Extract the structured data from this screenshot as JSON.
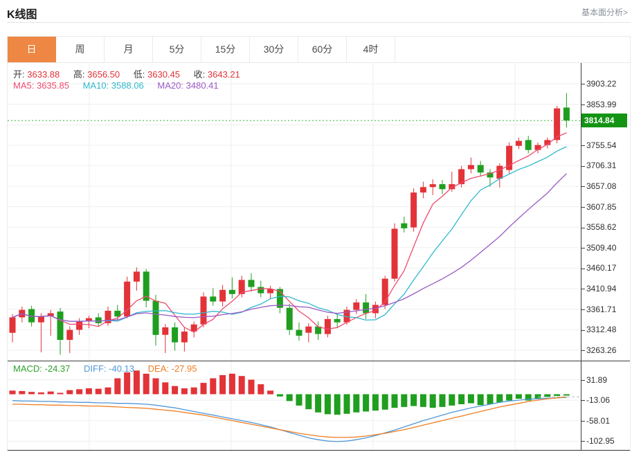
{
  "header": {
    "title": "K线图",
    "link": "基本面分析>"
  },
  "tabs": {
    "items": [
      "日",
      "周",
      "月",
      "5分",
      "15分",
      "30分",
      "60分",
      "4时"
    ],
    "active_index": 0
  },
  "legend": {
    "ohlc": [
      {
        "label": "开:",
        "value": "3633.88"
      },
      {
        "label": "高:",
        "value": "3656.50"
      },
      {
        "label": "低:",
        "value": "3630.45"
      },
      {
        "label": "收:",
        "value": "3643.21"
      }
    ],
    "ma": [
      {
        "label": "MA5:",
        "value": "3635.85"
      },
      {
        "label": "MA10:",
        "value": "3588.06"
      },
      {
        "label": "MA20:",
        "value": "3480.41"
      }
    ],
    "macd": [
      {
        "label": "MACD:",
        "value": "-24.37"
      },
      {
        "label": "DIFF:",
        "value": "-40.13"
      },
      {
        "label": "DEA:",
        "value": "-27.95"
      }
    ]
  },
  "price_tag": {
    "value": "3814.84"
  },
  "colors": {
    "up": "#e23338",
    "down": "#1f9e1f",
    "ma5": "#ef4a6e",
    "ma10": "#2fb8cd",
    "ma20": "#9b59c6",
    "diff": "#4e97d9",
    "dea": "#ef7d21",
    "macd_text": "#2ca32c",
    "grid": "#efefef",
    "vgrid": "#ececec",
    "axis_line": "#3c3c3c",
    "tick_text": "#2e2e2e",
    "price_line": "#2db82d",
    "tag_bg": "#149414",
    "tag_text": "#ffffff",
    "tab_active": "#ee8743",
    "dashed_tail": "#a5c3de",
    "label_text": "#3c3c3c",
    "link_text": "#8a9099"
  },
  "chart_data": [
    {
      "type": "candlestick",
      "title": "K线图",
      "panel": "main",
      "ylim": [
        3238.1,
        3953.1
      ],
      "yticks": [
        "3903.22",
        "3853.99",
        "3804.76",
        "3755.54",
        "3706.31",
        "3657.08",
        "3607.85",
        "3558.62",
        "3509.40",
        "3460.17",
        "3410.94",
        "3361.71",
        "3312.48",
        "3263.26"
      ],
      "current_price": 3814.84,
      "ma_periods": [
        5,
        10,
        20
      ],
      "legend_note": "red=up green=down, ohlc order [open,high,low,close]",
      "candles": [
        [
          3305,
          3350,
          3282,
          3342
        ],
        [
          3342,
          3368,
          3330,
          3360
        ],
        [
          3362,
          3370,
          3320,
          3330
        ],
        [
          3330,
          3352,
          3258,
          3345
        ],
        [
          3345,
          3360,
          3298,
          3352
        ],
        [
          3356,
          3365,
          3252,
          3288
        ],
        [
          3288,
          3320,
          3256,
          3312
        ],
        [
          3312,
          3340,
          3300,
          3332
        ],
        [
          3332,
          3346,
          3316,
          3340
        ],
        [
          3342,
          3352,
          3320,
          3328
        ],
        [
          3328,
          3368,
          3322,
          3358
        ],
        [
          3358,
          3372,
          3336,
          3344
        ],
        [
          3344,
          3440,
          3340,
          3428
        ],
        [
          3428,
          3462,
          3406,
          3452
        ],
        [
          3452,
          3458,
          3366,
          3382
        ],
        [
          3382,
          3396,
          3274,
          3300
        ],
        [
          3300,
          3326,
          3256,
          3318
        ],
        [
          3318,
          3330,
          3262,
          3282
        ],
        [
          3282,
          3318,
          3260,
          3308
        ],
        [
          3308,
          3332,
          3294,
          3325
        ],
        [
          3325,
          3402,
          3318,
          3392
        ],
        [
          3392,
          3412,
          3370,
          3380
        ],
        [
          3380,
          3420,
          3368,
          3408
        ],
        [
          3408,
          3438,
          3388,
          3398
        ],
        [
          3398,
          3442,
          3390,
          3432
        ],
        [
          3432,
          3448,
          3404,
          3415
        ],
        [
          3415,
          3430,
          3390,
          3400
        ],
        [
          3400,
          3418,
          3386,
          3410
        ],
        [
          3410,
          3415,
          3352,
          3365
        ],
        [
          3365,
          3375,
          3300,
          3312
        ],
        [
          3312,
          3330,
          3286,
          3298
        ],
        [
          3305,
          3328,
          3282,
          3320
        ],
        [
          3320,
          3332,
          3288,
          3302
        ],
        [
          3302,
          3346,
          3294,
          3338
        ],
        [
          3338,
          3352,
          3316,
          3330
        ],
        [
          3330,
          3368,
          3324,
          3360
        ],
        [
          3360,
          3386,
          3350,
          3378
        ],
        [
          3378,
          3398,
          3338,
          3352
        ],
        [
          3352,
          3380,
          3340,
          3372
        ],
        [
          3372,
          3442,
          3362,
          3435
        ],
        [
          3435,
          3568,
          3428,
          3555
        ],
        [
          3568,
          3584,
          3546,
          3556
        ],
        [
          3558,
          3652,
          3548,
          3642
        ],
        [
          3642,
          3668,
          3628,
          3655
        ],
        [
          3655,
          3674,
          3636,
          3662
        ],
        [
          3662,
          3672,
          3638,
          3650
        ],
        [
          3650,
          3692,
          3644,
          3662
        ],
        [
          3662,
          3706,
          3654,
          3698
        ],
        [
          3698,
          3726,
          3688,
          3708
        ],
        [
          3708,
          3718,
          3680,
          3690
        ],
        [
          3690,
          3698,
          3656,
          3678
        ],
        [
          3675,
          3712,
          3654,
          3706
        ],
        [
          3696,
          3762,
          3688,
          3754
        ],
        [
          3754,
          3774,
          3746,
          3766
        ],
        [
          3768,
          3778,
          3736,
          3744
        ],
        [
          3744,
          3762,
          3736,
          3756
        ],
        [
          3756,
          3774,
          3748,
          3768
        ],
        [
          3768,
          3850,
          3760,
          3844
        ],
        [
          3846,
          3881,
          3798,
          3814.84
        ]
      ]
    },
    {
      "type": "bar",
      "title": "MACD",
      "panel": "sub",
      "ylim": [
        -124,
        72.3
      ],
      "yticks": [
        "31.89",
        "-13.06",
        "-58.01",
        "-102.95"
      ],
      "histogram": [
        8,
        7,
        5,
        4,
        6,
        3,
        9,
        11,
        13,
        12,
        15,
        35,
        48,
        52,
        45,
        35,
        26,
        18,
        13,
        15,
        25,
        35,
        42,
        45,
        40,
        32,
        22,
        8,
        -5,
        -15,
        -25,
        -33,
        -40,
        -44,
        -45,
        -43,
        -40,
        -38,
        -36,
        -34,
        -30,
        -28,
        -26,
        -28,
        -30,
        -28,
        -25,
        -22,
        -20,
        -24,
        -22,
        -18,
        -14,
        -10,
        -14,
        -10,
        -6,
        -4,
        -3
      ],
      "diff": [
        -14,
        -15,
        -15,
        -16,
        -16,
        -17,
        -17,
        -18,
        -18,
        -19,
        -19,
        -20,
        -20,
        -21,
        -22,
        -24,
        -27,
        -30,
        -34,
        -38,
        -42,
        -46,
        -50,
        -54,
        -58,
        -62,
        -67,
        -72,
        -78,
        -84,
        -90,
        -96,
        -100,
        -103,
        -104,
        -103,
        -100,
        -96,
        -91,
        -85,
        -79,
        -72,
        -65,
        -58,
        -52,
        -46,
        -40,
        -35,
        -30,
        -26,
        -22,
        -18,
        -15,
        -13,
        -11,
        -10,
        -9,
        -8,
        -7
      ],
      "dea": [
        -22,
        -22,
        -23,
        -23,
        -24,
        -24,
        -25,
        -25,
        -26,
        -26,
        -27,
        -28,
        -29,
        -30,
        -31,
        -33,
        -35,
        -37,
        -40,
        -43,
        -46,
        -50,
        -54,
        -58,
        -62,
        -66,
        -70,
        -74,
        -78,
        -82,
        -86,
        -89,
        -92,
        -94,
        -95,
        -95,
        -94,
        -92,
        -89,
        -86,
        -82,
        -78,
        -73,
        -68,
        -63,
        -58,
        -53,
        -48,
        -43,
        -38,
        -33,
        -28,
        -24,
        -20,
        -16,
        -13,
        -10,
        -8,
        -6
      ],
      "tail_value": -6
    }
  ],
  "layout": {
    "vgrid_x": [
      118,
      323,
      528,
      733
    ]
  }
}
